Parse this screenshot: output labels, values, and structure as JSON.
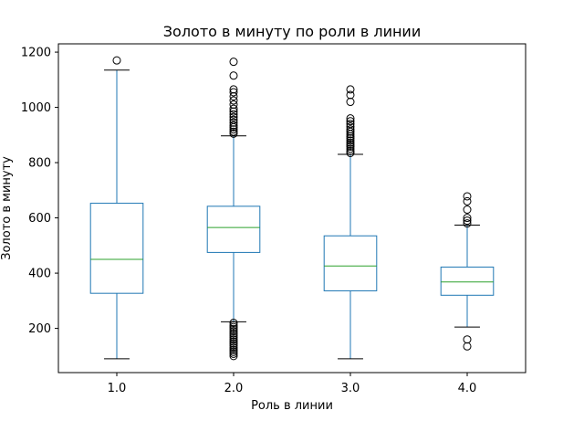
{
  "chart_data": {
    "type": "box",
    "title": "Золото в минуту по роли в линии",
    "xlabel": "Роль в линии",
    "ylabel": "Золото в минуту",
    "categories": [
      "1.0",
      "2.0",
      "3.0",
      "4.0"
    ],
    "ylim": [
      40,
      1230
    ],
    "yticks": [
      200,
      400,
      600,
      800,
      1000,
      1200
    ],
    "grid": false,
    "colors": {
      "box": "#1f77b4",
      "median": "#2ca02c",
      "whisker_cap": "#000000",
      "flier": "#000000"
    },
    "boxes": [
      {
        "category": "1.0",
        "whisker_low": 90,
        "q1": 327,
        "median": 450,
        "q3": 653,
        "whisker_high": 1135,
        "fliers": [
          1170
        ]
      },
      {
        "category": "2.0",
        "whisker_low": 224,
        "q1": 475,
        "median": 565,
        "q3": 642,
        "whisker_high": 897,
        "fliers": [
          905,
          912,
          920,
          928,
          935,
          945,
          955,
          965,
          975,
          985,
          995,
          1010,
          1025,
          1040,
          1055,
          1065,
          1115,
          1165,
          220,
          212,
          205,
          198,
          190,
          182,
          175,
          168,
          160,
          152,
          145,
          138,
          130,
          122,
          115,
          108,
          100
        ]
      },
      {
        "category": "3.0",
        "whisker_low": 90,
        "q1": 336,
        "median": 426,
        "q3": 535,
        "whisker_high": 830,
        "fliers": [
          835,
          842,
          850,
          858,
          865,
          872,
          880,
          888,
          895,
          903,
          912,
          920,
          930,
          940,
          950,
          960,
          1020,
          1045,
          1065
        ]
      },
      {
        "category": "4.0",
        "whisker_low": 205,
        "q1": 320,
        "median": 368,
        "q3": 422,
        "whisker_high": 574,
        "fliers": [
          580,
          590,
          600,
          630,
          660,
          678,
          160,
          135
        ]
      }
    ]
  }
}
